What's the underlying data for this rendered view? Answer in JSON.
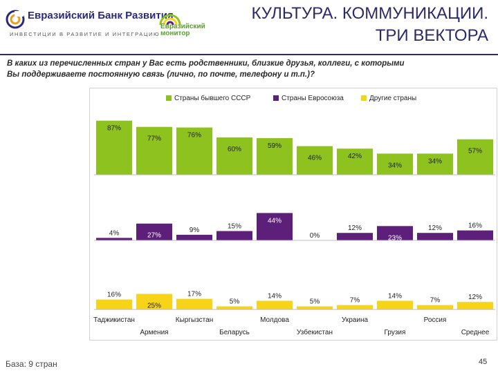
{
  "header": {
    "bank_name": "Евразийский Банк Развития",
    "bank_tagline": "ИНВЕСТИЦИИ В РАЗВИТИЕ И ИНТЕГРАЦИЮ",
    "monitor_line1": "Евразийский",
    "monitor_line2": "монитор",
    "title_line1": "КУЛЬТУРА. КОММУНИКАЦИИ.",
    "title_line2": "ТРИ ВЕКТОРА"
  },
  "question": {
    "line1": "В каких из перечисленных стран у Вас есть родственники, близкие друзья, коллеги, с которыми",
    "line2": "Вы поддерживаете постоянную связь (лично, по почте, телефону и т.п.)?"
  },
  "footer": {
    "base": "База: 9 стран",
    "page_number": "45"
  },
  "colors": {
    "green": "#8dc21f",
    "purple": "#5c1f7a",
    "yellow": "#f7d417",
    "title": "#2a2a6a"
  },
  "chart_data": {
    "type": "bar",
    "categories": [
      "Таджикистан",
      "Армения",
      "Кыргызстан",
      "Беларусь",
      "Молдова",
      "Узбекистан",
      "Украина",
      "Грузия",
      "Россия",
      "Среднее"
    ],
    "series": [
      {
        "name": "Страны бывшего СССР",
        "color": "#8dc21f",
        "values": [
          87,
          77,
          76,
          60,
          59,
          46,
          42,
          34,
          34,
          57
        ]
      },
      {
        "name": "Страны Евросоюза",
        "color": "#5c1f7a",
        "values": [
          4,
          27,
          9,
          15,
          44,
          0,
          12,
          23,
          12,
          16
        ]
      },
      {
        "name": "Другие страны",
        "color": "#f7d417",
        "values": [
          16,
          25,
          17,
          5,
          14,
          5,
          7,
          14,
          7,
          12
        ]
      }
    ],
    "value_suffix": "%",
    "legend_position": "top"
  }
}
